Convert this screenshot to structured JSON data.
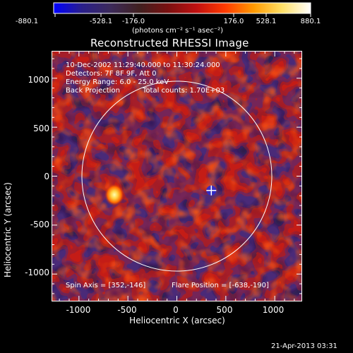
{
  "colorbar": {
    "ticks": [
      "-880.1",
      "-528.1",
      "-176.0",
      "176.0",
      "528.1",
      "880.1"
    ],
    "units": "(photons cm⁻² s⁻¹ asec⁻²)",
    "stops": [
      "#0000ff",
      "#2a1f8a",
      "#3c2a5a",
      "#402020",
      "#7a1010",
      "#c01010",
      "#ff3a00",
      "#ff9a00",
      "#ffe066",
      "#ffffff"
    ]
  },
  "chart_data": {
    "type": "heatmap",
    "title": "Reconstructed RHESSI Image",
    "xlabel": "Heliocentric X (arcsec)",
    "ylabel": "Heliocentric Y (arcsec)",
    "xlim": [
      -1280,
      1280
    ],
    "ylim": [
      -1280,
      1280
    ],
    "xticks": [
      -1000,
      -500,
      0,
      500,
      1000
    ],
    "yticks": [
      -1000,
      -500,
      0,
      500,
      1000
    ],
    "xtick_labels": [
      "-1000",
      "-500",
      "0",
      "500",
      "1000"
    ],
    "ytick_labels": [
      "-1000",
      "-500",
      "0",
      "500",
      "1000"
    ],
    "color_range": [
      -880.1,
      880.1
    ],
    "solar_limb_radius": 970,
    "marker": {
      "x": 352,
      "y": -146,
      "symbol": "+"
    },
    "hot_spot": {
      "x": -638,
      "y": -190
    },
    "annotations": {
      "time": "10-Dec-2002 11:29:40.000 to 11:30:24.000",
      "detectors": "Detectors: 7F 8F 9F, Att 0",
      "energy": "Energy Range: 6.0 - 25.0 keV",
      "method": "Back Projection",
      "counts": "Total counts: 1.70E+03",
      "spin_axis": "Spin Axis = [352,-146]",
      "flare_position": "Flare Position = [-638,-190]"
    }
  },
  "footer": {
    "date": "21-Apr-2013 03:31"
  }
}
